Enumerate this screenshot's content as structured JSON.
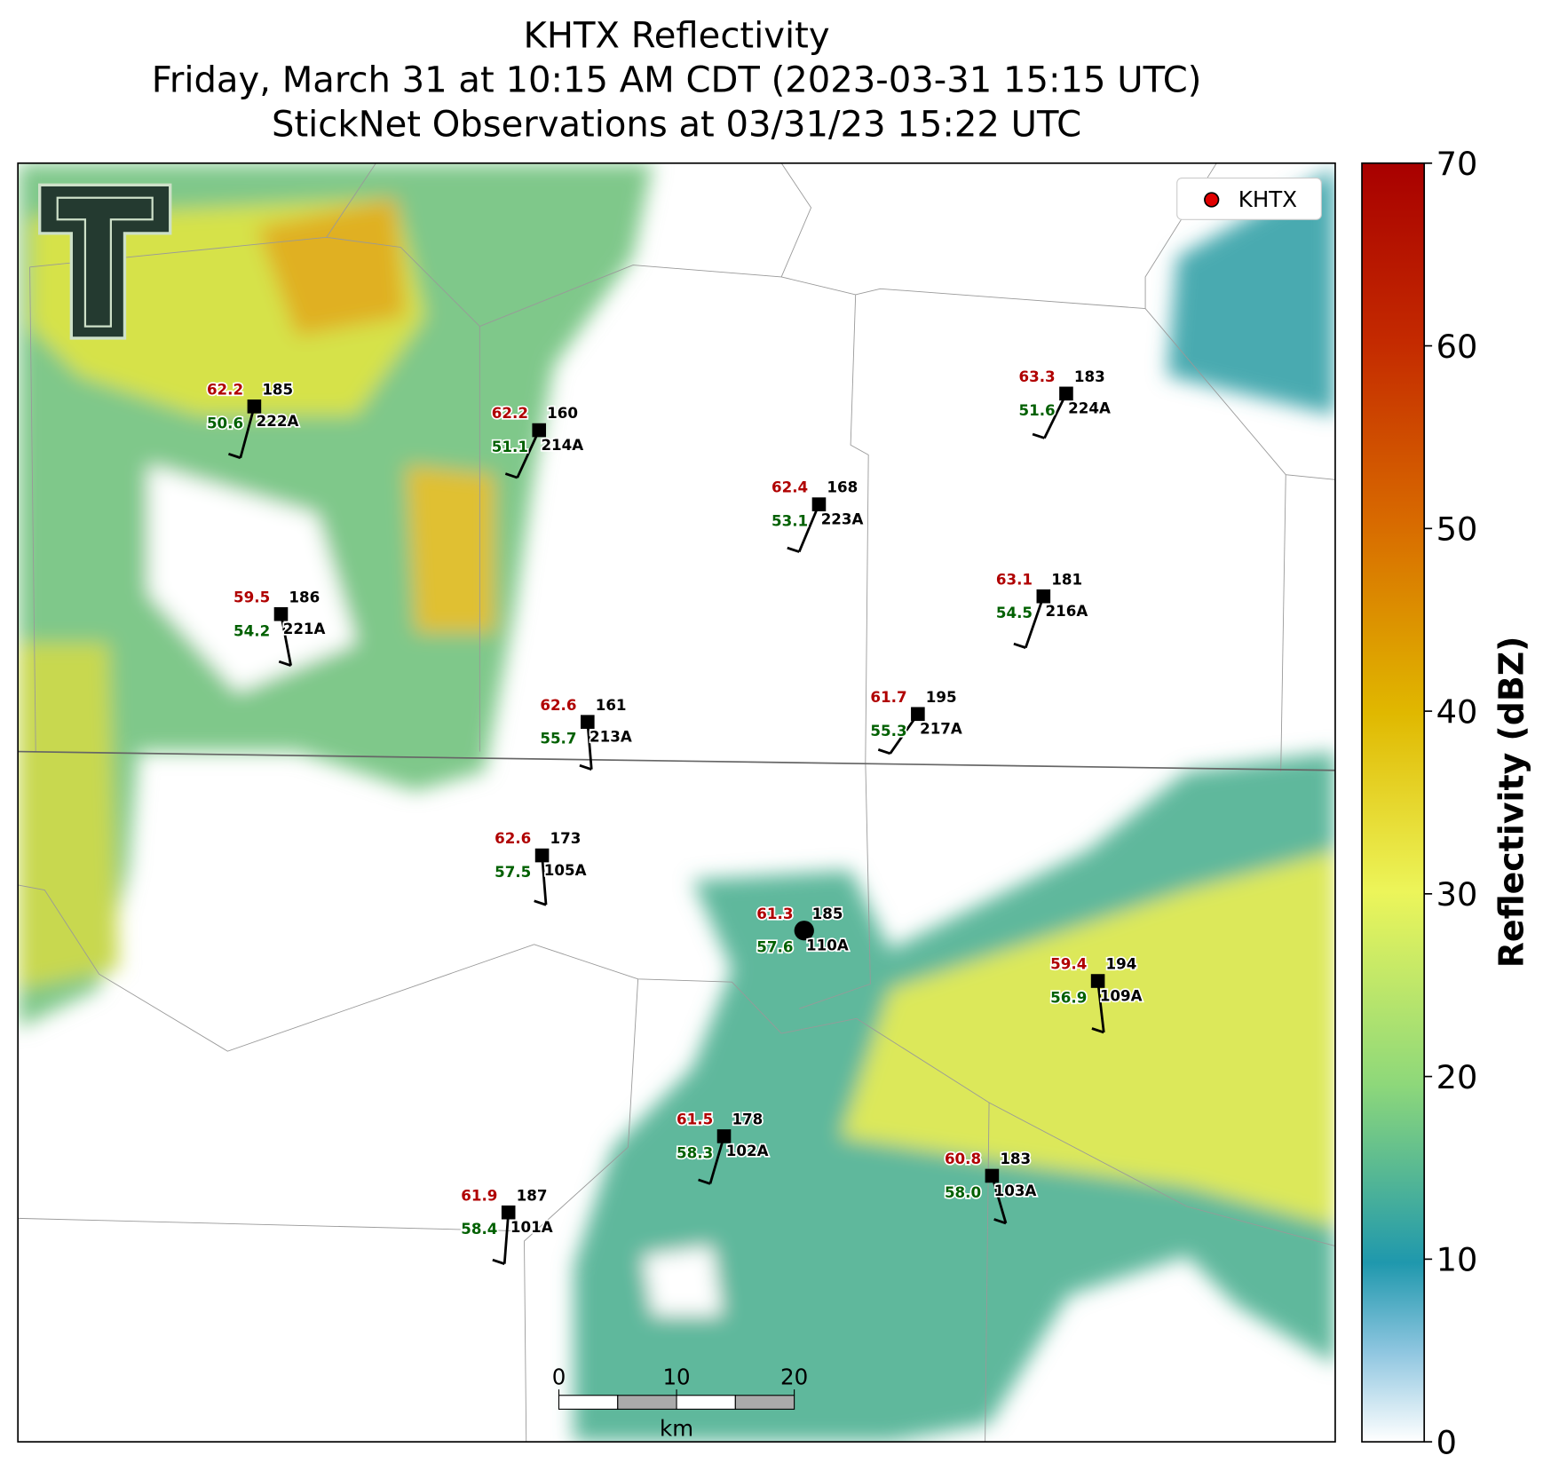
{
  "title": [
    "KHTX Reflectivity",
    "Friday, March 31 at 10:15 AM CDT (2023-03-31 15:15 UTC)",
    "StickNet Observations at 03/31/23 15:22 UTC"
  ],
  "legend": "KHTX",
  "colorbar": {
    "label": "Reflectivity (dBZ)",
    "lim": [
      0,
      70
    ],
    "ticks": [
      0,
      10,
      20,
      30,
      40,
      50,
      60,
      70
    ]
  },
  "scale_bar": {
    "ticks": [
      0,
      10,
      20
    ],
    "unit": "km"
  },
  "stations": [
    {
      "temp": "62.2",
      "value": "185",
      "dew": "50.6",
      "id": "222A"
    },
    {
      "temp": "62.2",
      "value": "160",
      "dew": "51.1",
      "id": "214A"
    },
    {
      "temp": "62.4",
      "value": "168",
      "dew": "53.1",
      "id": "223A"
    },
    {
      "temp": "63.3",
      "value": "183",
      "dew": "51.6",
      "id": "224A"
    },
    {
      "temp": "59.5",
      "value": "186",
      "dew": "54.2",
      "id": "221A"
    },
    {
      "temp": "63.1",
      "value": "181",
      "dew": "54.5",
      "id": "216A"
    },
    {
      "temp": "62.6",
      "value": "161",
      "dew": "55.7",
      "id": "213A"
    },
    {
      "temp": "61.7",
      "value": "195",
      "dew": "55.3",
      "id": "217A"
    },
    {
      "temp": "62.6",
      "value": "173",
      "dew": "57.5",
      "id": "105A"
    },
    {
      "temp": "61.3",
      "value": "185",
      "dew": "57.6",
      "id": "110A"
    },
    {
      "temp": "59.4",
      "value": "194",
      "dew": "56.9",
      "id": "109A"
    },
    {
      "temp": "61.5",
      "value": "178",
      "dew": "58.3",
      "id": "102A"
    },
    {
      "temp": "60.8",
      "value": "183",
      "dew": "58.0",
      "id": "103A"
    },
    {
      "temp": "61.9",
      "value": "187",
      "dew": "58.4",
      "id": "101A"
    }
  ]
}
